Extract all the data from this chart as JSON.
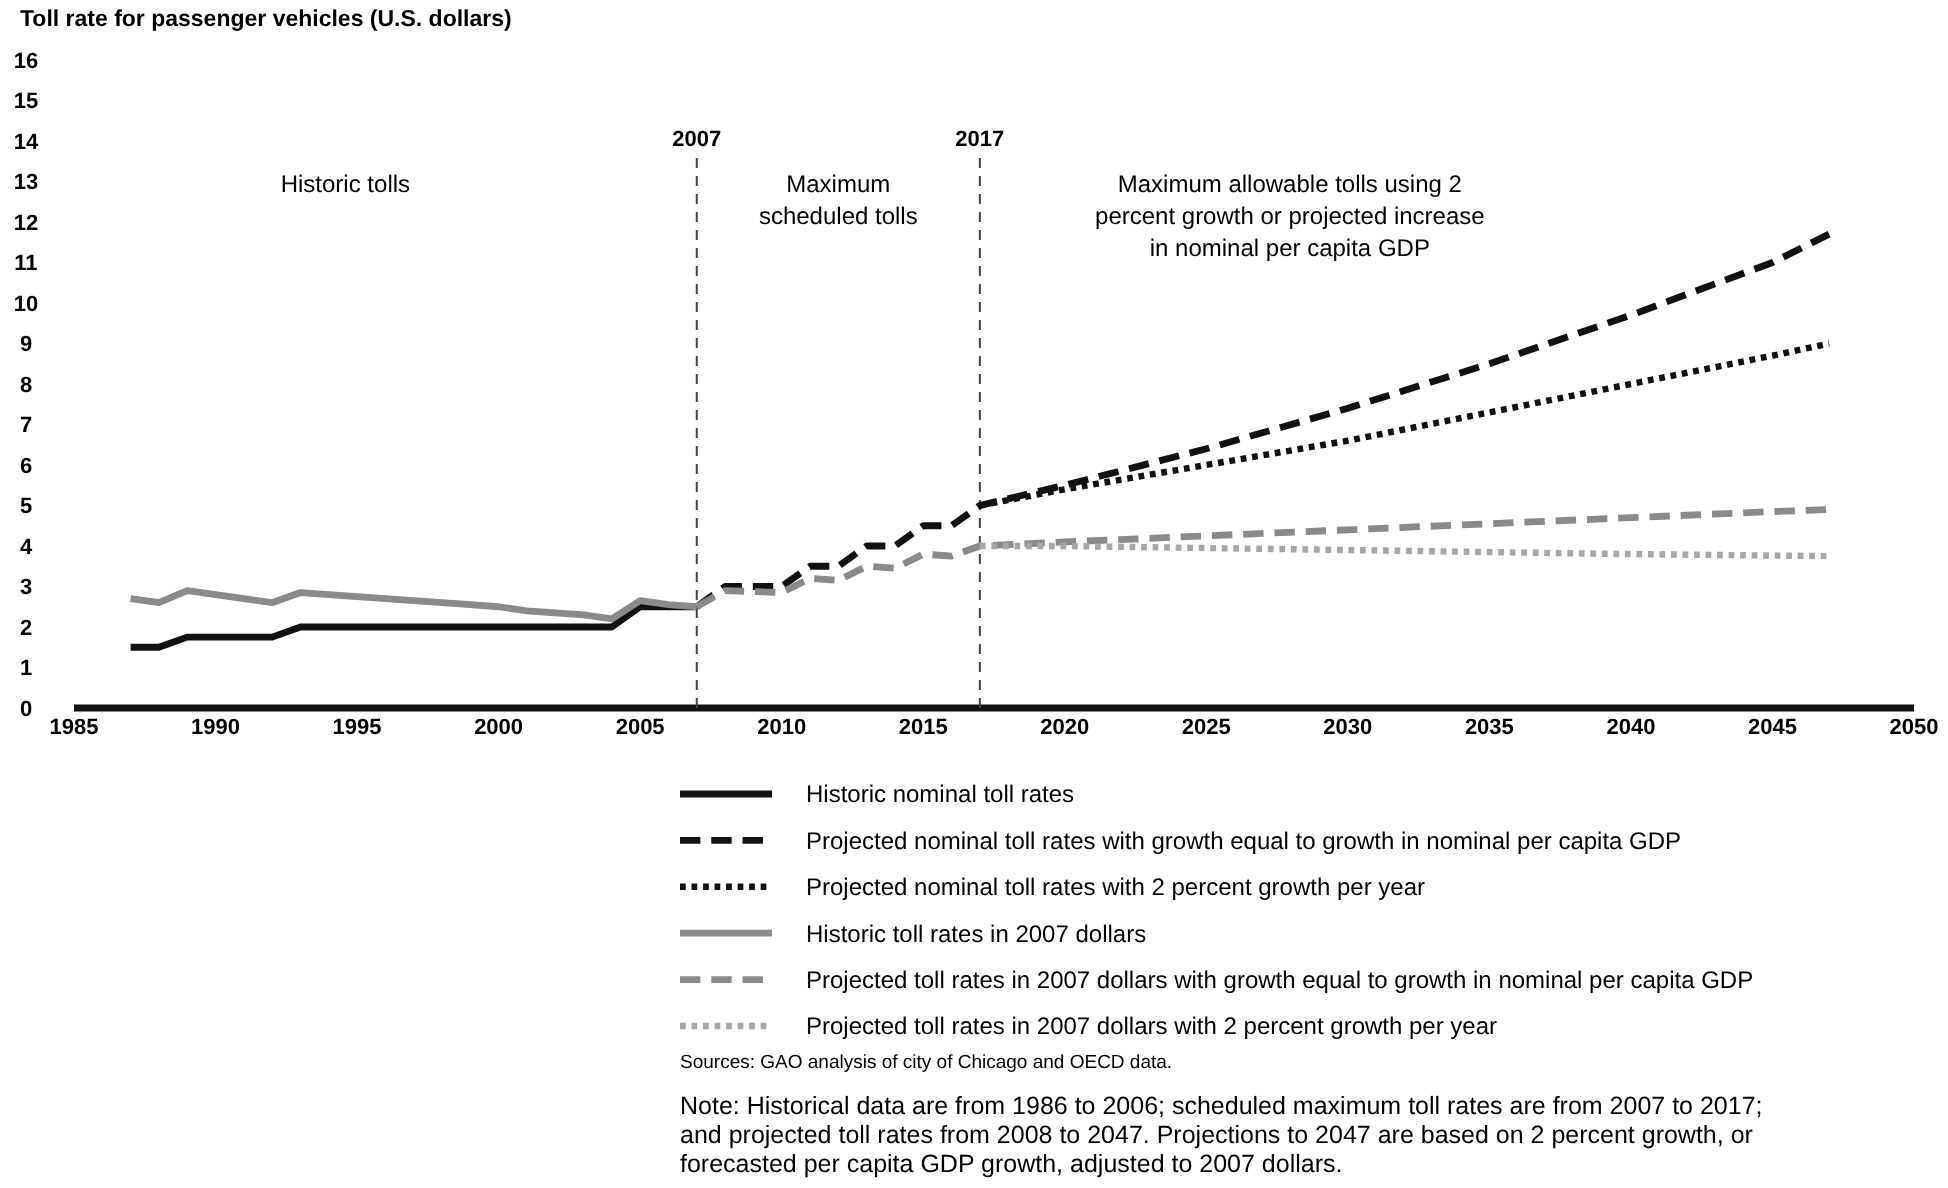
{
  "chart_data": {
    "type": "line",
    "ylabel": "Toll rate for passenger vehicles (U.S. dollars)",
    "xlim": [
      1985,
      2050
    ],
    "xticks": [
      1985,
      1990,
      1995,
      2000,
      2005,
      2010,
      2015,
      2020,
      2025,
      2030,
      2035,
      2040,
      2045,
      2050
    ],
    "ylim": [
      0,
      16
    ],
    "yticks": [
      0,
      1,
      2,
      3,
      4,
      5,
      6,
      7,
      8,
      9,
      10,
      11,
      12,
      13,
      14,
      15,
      16
    ],
    "grid": false,
    "legend": "bottom",
    "series": [
      {
        "name": "Historic nominal toll rates",
        "color": "#111111",
        "line_style": "solid",
        "x": [
          1987,
          1988,
          1989,
          1990,
          1991,
          1992,
          1993,
          1994,
          1995,
          1996,
          1997,
          1998,
          1999,
          2000,
          2001,
          2002,
          2003,
          2004,
          2005,
          2006,
          2007
        ],
        "values": [
          1.5,
          1.5,
          1.75,
          1.75,
          1.75,
          1.75,
          2,
          2,
          2,
          2,
          2,
          2,
          2,
          2,
          2,
          2,
          2,
          2,
          2.5,
          2.5,
          2.5
        ]
      },
      {
        "name": "Projected nominal toll rates with growth equal to growth in nominal per capita GDP",
        "color": "#111111",
        "line_style": "dashed",
        "x": [
          2007,
          2008,
          2010,
          2011,
          2012,
          2013,
          2014,
          2015,
          2016,
          2017,
          2020,
          2025,
          2030,
          2035,
          2040,
          2045,
          2047
        ],
        "values": [
          2.5,
          3,
          3,
          3.5,
          3.5,
          4,
          4,
          4.5,
          4.5,
          5,
          5.5,
          6.4,
          7.4,
          8.5,
          9.7,
          11,
          11.7
        ]
      },
      {
        "name": "Projected nominal toll rates with 2 percent growth per year",
        "color": "#111111",
        "line_style": "dotted",
        "x": [
          2017,
          2020,
          2025,
          2030,
          2035,
          2040,
          2045,
          2047
        ],
        "values": [
          5,
          5.4,
          6,
          6.6,
          7.3,
          8,
          8.7,
          9
        ]
      },
      {
        "name": "Historic toll rates in 2007 dollars",
        "color": "#8a8a8a",
        "line_style": "solid",
        "x": [
          1987,
          1988,
          1989,
          1990,
          1991,
          1992,
          1993,
          1994,
          1995,
          1996,
          1997,
          1998,
          1999,
          2000,
          2001,
          2002,
          2003,
          2004,
          2005,
          2006,
          2007
        ],
        "values": [
          2.7,
          2.6,
          2.9,
          2.8,
          2.7,
          2.6,
          2.85,
          2.8,
          2.75,
          2.7,
          2.65,
          2.6,
          2.55,
          2.5,
          2.4,
          2.35,
          2.3,
          2.2,
          2.65,
          2.55,
          2.5
        ]
      },
      {
        "name": "Projected toll rates in 2007 dollars with growth equal to growth in nominal per capita GDP",
        "color": "#8a8a8a",
        "line_style": "dashed",
        "x": [
          2007,
          2008,
          2010,
          2011,
          2012,
          2013,
          2014,
          2015,
          2016,
          2017,
          2020,
          2025,
          2030,
          2035,
          2040,
          2045,
          2047
        ],
        "values": [
          2.5,
          2.9,
          2.85,
          3.2,
          3.15,
          3.5,
          3.45,
          3.8,
          3.75,
          4,
          4.1,
          4.25,
          4.4,
          4.55,
          4.7,
          4.85,
          4.9
        ]
      },
      {
        "name": "Projected toll rates in 2007 dollars with 2 percent growth per year",
        "color": "#a6a6a6",
        "line_style": "dotted",
        "x": [
          2017,
          2020,
          2025,
          2030,
          2035,
          2040,
          2047
        ],
        "values": [
          4,
          4,
          3.95,
          3.9,
          3.85,
          3.8,
          3.75
        ]
      }
    ],
    "ref_lines": [
      {
        "axis": "x",
        "value": 2007,
        "label": "2007",
        "color": "#444444",
        "line_style": "dashed"
      },
      {
        "axis": "x",
        "value": 2017,
        "label": "2017",
        "color": "#444444",
        "line_style": "dashed"
      }
    ],
    "annotations": [
      "Historic tolls",
      "Maximum\nscheduled tolls",
      "Maximum allowable tolls using 2\npercent growth or projected increase\nin nominal per capita GDP",
      "Sources: GAO analysis of city of Chicago and OECD data.",
      "Note: Historical data are from 1986 to 2006; scheduled maximum toll rates are from 2007 to 2017;\nand projected toll rates from 2008 to 2047. Projections to 2047 are based on 2 percent growth, or\nforecasted per capita GDP growth, adjusted to 2007 dollars."
    ]
  }
}
